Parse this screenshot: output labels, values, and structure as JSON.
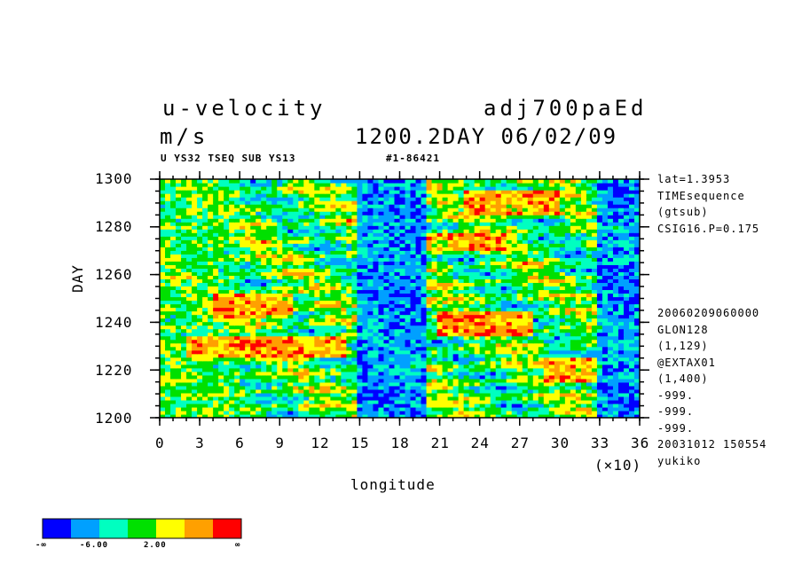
{
  "header": {
    "variable": "u-velocity",
    "experiment": "adj700paEd",
    "units": "m/s",
    "time": "1200.2DAY 06/02/09",
    "sublabel": "U YS32 TSEQ SUB YS13",
    "id_label": "#1-86421"
  },
  "side_info": {
    "top": [
      "lat=1.3953",
      "TIMEsequence",
      "(gtsub)",
      "CSIG16.P=0.175"
    ],
    "bottom": [
      "20060209060000",
      "GLON128",
      "(1,129)",
      "@EXTAX01",
      "(1,400)",
      "-999.",
      "-999.",
      "-999.",
      "20031012 150554",
      "yukiko"
    ]
  },
  "colorbar": {
    "colors": [
      "#0000ff",
      "#00a0ff",
      "#00ffc0",
      "#00e000",
      "#ffff00",
      "#ffa000",
      "#ff0000"
    ],
    "tick_labels": [
      "-∞",
      "-6.00",
      "2.00",
      "∞"
    ]
  },
  "chart_data": {
    "type": "heatmap",
    "title": "u-velocity",
    "xlabel": "longitude",
    "ylabel": "DAY",
    "x_multiplier": "(×10)",
    "xlim": [
      0,
      36
    ],
    "ylim": [
      1200,
      1300
    ],
    "xticks": [
      0,
      3,
      6,
      9,
      12,
      15,
      18,
      21,
      24,
      27,
      30,
      33,
      36
    ],
    "yticks": [
      1200,
      1220,
      1240,
      1260,
      1280,
      1300
    ],
    "color_levels": [
      "-∞",
      "-6.00",
      "2.00",
      "∞"
    ],
    "cells_note": "Longitude-time Hovmoller of u-velocity; streaky field. Approximate dominant color class (0=blue lowest .. 6=red highest) per region.",
    "regions": [
      {
        "x": [
          0,
          6
        ],
        "y": [
          1200,
          1300
        ],
        "class": 3
      },
      {
        "x": [
          15,
          20
        ],
        "y": [
          1200,
          1300
        ],
        "class": 0
      },
      {
        "x": [
          4,
          10
        ],
        "y": [
          1242,
          1252
        ],
        "class": 6
      },
      {
        "x": [
          2,
          14
        ],
        "y": [
          1225,
          1235
        ],
        "class": 6
      },
      {
        "x": [
          21,
          28
        ],
        "y": [
          1235,
          1245
        ],
        "class": 6
      },
      {
        "x": [
          23,
          30
        ],
        "y": [
          1285,
          1295
        ],
        "class": 6
      },
      {
        "x": [
          20,
          26
        ],
        "y": [
          1270,
          1278
        ],
        "class": 6
      },
      {
        "x": [
          29,
          33
        ],
        "y": [
          1215,
          1225
        ],
        "class": 6
      },
      {
        "x": [
          33,
          36
        ],
        "y": [
          1200,
          1300
        ],
        "class": 0
      }
    ]
  }
}
